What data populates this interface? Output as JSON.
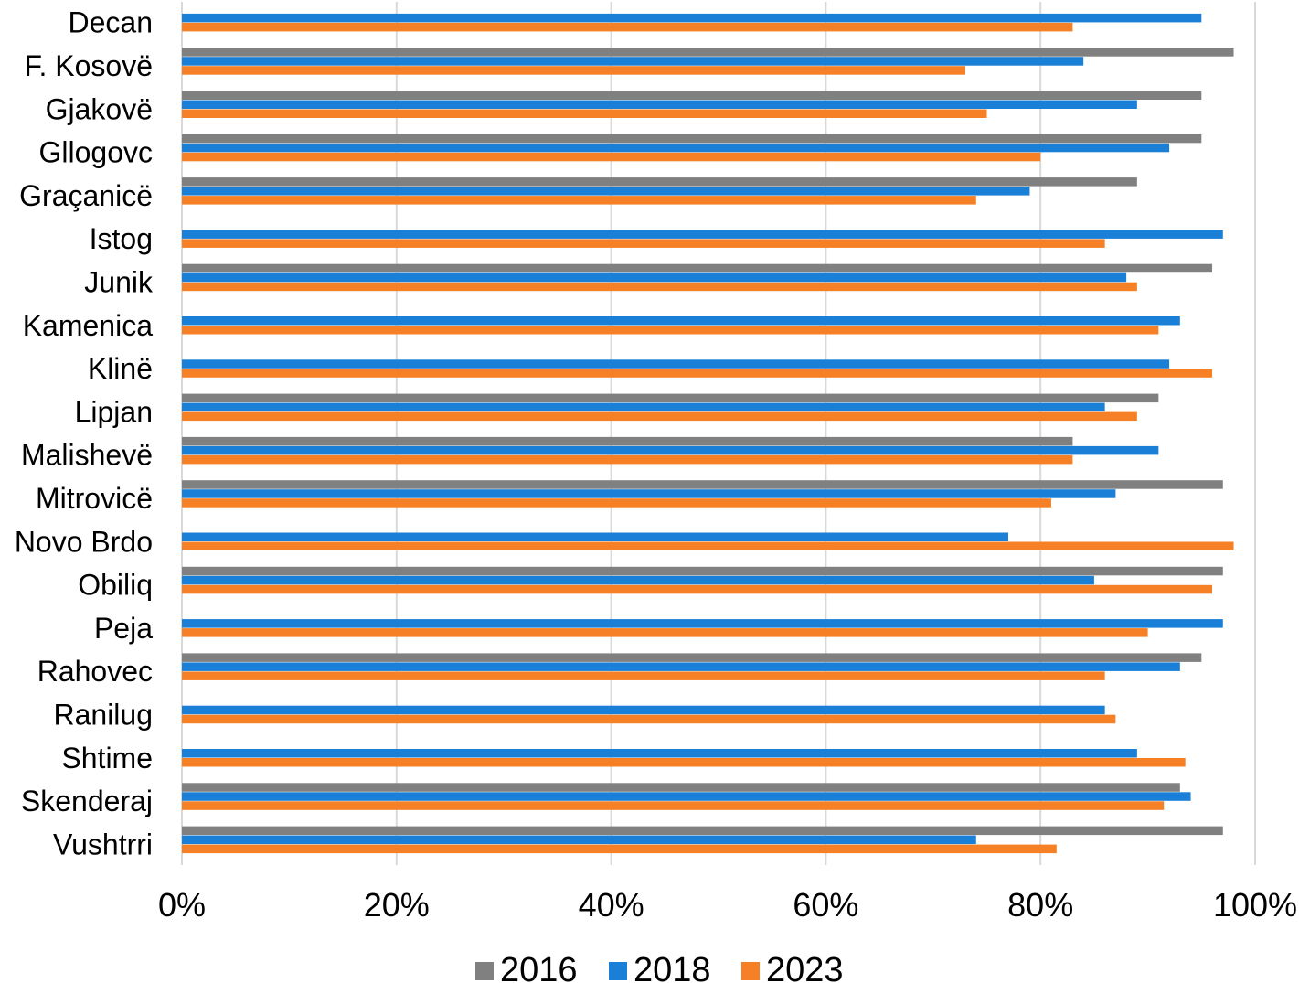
{
  "chart_data": {
    "type": "bar",
    "orientation": "horizontal",
    "categories": [
      "Decan",
      "F. Kosovë",
      "Gjakovë",
      "Gllogovc",
      "Graçanicë",
      "Istog",
      "Junik",
      "Kamenica",
      "Klinë",
      "Lipjan",
      "Malishevë",
      "Mitrovicë",
      "Novo Brdo",
      "Obiliq",
      "Peja",
      "Rahovec",
      "Ranilug",
      "Shtime",
      "Skenderaj",
      "Vushtrri"
    ],
    "series": [
      {
        "name": "2016",
        "color": "#808080",
        "values": [
          null,
          98,
          95,
          95,
          89,
          null,
          96,
          null,
          null,
          91,
          83,
          97,
          null,
          97,
          null,
          95,
          null,
          null,
          93,
          97
        ]
      },
      {
        "name": "2018",
        "color": "#1a7fd6",
        "values": [
          95,
          84,
          89,
          92,
          79,
          97,
          88,
          93,
          92,
          86,
          91,
          87,
          77,
          85,
          97,
          93,
          86,
          89,
          94,
          74
        ]
      },
      {
        "name": "2023",
        "color": "#f58025",
        "values": [
          83,
          73,
          75,
          80,
          74,
          86,
          89,
          91,
          96,
          89,
          83,
          81,
          98,
          96,
          90,
          86,
          87,
          93.5,
          91.5,
          81.5
        ]
      }
    ],
    "xlim": [
      0,
      100
    ],
    "xticks": [
      "0%",
      "20%",
      "40%",
      "60%",
      "80%",
      "100%"
    ],
    "grid": true,
    "legend_position": "bottom"
  }
}
